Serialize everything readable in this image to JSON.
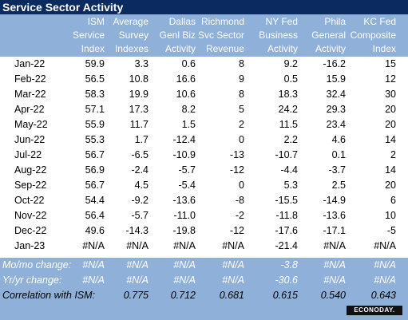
{
  "title": "Service Sector Activity",
  "headers": [
    [
      "",
      "",
      ""
    ],
    [
      "ISM",
      "Service",
      "Index"
    ],
    [
      "Average",
      "Survey",
      "Indexes"
    ],
    [
      "Dallas",
      "Genl Biz",
      "Activity"
    ],
    [
      "Richmond",
      "Svc Sector",
      "Revenue"
    ],
    [
      "NY Fed",
      "Business",
      "Activity"
    ],
    [
      "Phila",
      "General",
      "Activity"
    ],
    [
      "KC Fed",
      "Composite",
      "Index"
    ]
  ],
  "rows": [
    [
      "Jan-22",
      "59.9",
      "3.3",
      "0.6",
      "8",
      "9.2",
      "-16.2",
      "15"
    ],
    [
      "Feb-22",
      "56.5",
      "10.8",
      "16.6",
      "9",
      "0.5",
      "15.9",
      "12"
    ],
    [
      "Mar-22",
      "58.3",
      "19.9",
      "10.6",
      "8",
      "18.3",
      "32.4",
      "30"
    ],
    [
      "Apr-22",
      "57.1",
      "17.3",
      "8.2",
      "5",
      "24.2",
      "29.3",
      "20"
    ],
    [
      "May-22",
      "55.9",
      "11.7",
      "1.5",
      "2",
      "11.5",
      "23.4",
      "20"
    ],
    [
      "Jun-22",
      "55.3",
      "1.7",
      "-12.4",
      "0",
      "2.2",
      "4.6",
      "14"
    ],
    [
      "Jul-22",
      "56.7",
      "-6.5",
      "-10.9",
      "-13",
      "-10.7",
      "0.1",
      "2"
    ],
    [
      "Aug-22",
      "56.9",
      "-2.4",
      "-5.7",
      "-12",
      "-4.4",
      "-3.7",
      "14"
    ],
    [
      "Sep-22",
      "56.7",
      "4.5",
      "-5.4",
      "0",
      "5.3",
      "2.5",
      "20"
    ],
    [
      "Oct-22",
      "54.4",
      "-9.2",
      "-13.6",
      "-8",
      "-15.5",
      "-14.9",
      "6"
    ],
    [
      "Nov-22",
      "56.4",
      "-5.7",
      "-11.0",
      "-2",
      "-11.8",
      "-13.6",
      "10"
    ],
    [
      "Dec-22",
      "49.6",
      "-14.3",
      "-19.8",
      "-12",
      "-17.6",
      "-17.1",
      "-5"
    ],
    [
      "Jan-23",
      "#N/A",
      "#N/A",
      "#N/A",
      "#N/A",
      "-21.4",
      "#N/A",
      "#N/A"
    ]
  ],
  "footer": [
    [
      "Mo/mo change:",
      "#N/A",
      "#N/A",
      "#N/A",
      "#N/A",
      "-3.8",
      "#N/A",
      "#N/A"
    ],
    [
      "Yr/yr change:",
      "#N/A",
      "#N/A",
      "#N/A",
      "#N/A",
      "-30.6",
      "#N/A",
      "#N/A"
    ],
    [
      "Correlation with ISM:",
      "",
      "0.775",
      "0.712",
      "0.681",
      "0.615",
      "0.540",
      "0.643"
    ]
  ],
  "logo_text": "ECONODAY.",
  "colors": {
    "title_bg": "#0b2a5e",
    "header_bg": "#8fb0d8",
    "white": "#ffffff"
  }
}
